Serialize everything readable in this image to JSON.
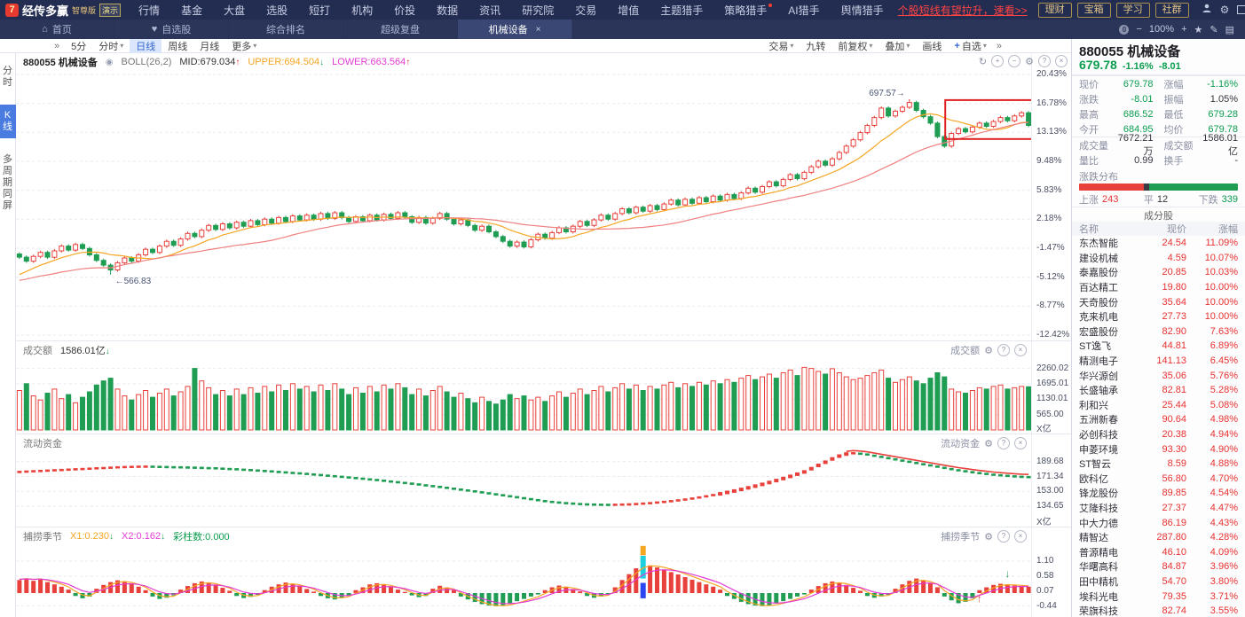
{
  "titlebar": {
    "logo_glyph": "7",
    "brand": "经传多赢",
    "edition": "智尊版",
    "demo_tag": "演示",
    "menus": [
      "行情",
      "基金",
      "大盘",
      "选股",
      "短打",
      "机构",
      "价投",
      "数据",
      "资讯",
      "研究院",
      "交易",
      "增值",
      "主题猎手",
      "策略猎手",
      "AI猎手",
      "舆情猎手"
    ],
    "menu_red_dot": "策略猎手",
    "promo": "个股短线有望拉升，速看>>",
    "gold_buttons": [
      "理财",
      "宝箱",
      "学习",
      "社群"
    ],
    "window_icons": [
      "user",
      "settings",
      "skin",
      "divider",
      "chevron-down",
      "minimize",
      "restore",
      "close"
    ]
  },
  "tabbar": {
    "tabs": [
      {
        "label": "首页",
        "icon": "home-icon"
      },
      {
        "label": "自选股",
        "icon": "heart-icon"
      },
      {
        "label": "综合排名"
      },
      {
        "label": "超级复盘"
      },
      {
        "label": "机械设备",
        "active": true,
        "closable": true
      }
    ],
    "zoom_level": "100%",
    "zoom_icons": [
      "coin",
      "zoom-out",
      "zoom-in",
      "star",
      "pencil",
      "layout"
    ]
  },
  "toolbar": {
    "collapse_glyph": "»",
    "periods": [
      {
        "label": "5分"
      },
      {
        "label": "分时",
        "caret": true
      },
      {
        "label": "日线",
        "active": true
      },
      {
        "label": "周线"
      },
      {
        "label": "月线"
      },
      {
        "label": "更多",
        "caret": true
      }
    ],
    "tools": [
      {
        "label": "交易",
        "caret": true
      },
      {
        "label": "九转"
      },
      {
        "label": "前复权",
        "caret": true
      },
      {
        "label": "叠加",
        "caret": true
      },
      {
        "label": "画线"
      },
      {
        "label": "+自选",
        "caret": true,
        "accent": true
      }
    ],
    "more_glyph": "»"
  },
  "sidebar": {
    "items": [
      {
        "label": "分时"
      },
      {
        "label": "K线",
        "active": true
      },
      {
        "label": "多周期同屏"
      }
    ]
  },
  "kline_header": {
    "symbol": "880055 机械设备",
    "indicator": "BOLL(26,2)",
    "mid": "MID:679.034",
    "upper": "UPPER:694.504",
    "lower": "LOWER:663.564"
  },
  "panel_headers": {
    "volume_name": "成交额",
    "volume_value": "1586.01亿",
    "fund_name": "流动资金",
    "season_name": "捕捞季节",
    "season_x1": "X1:0.230",
    "season_x2": "X2:0.162",
    "season_bars": "彩柱数:0.000"
  },
  "quote": {
    "title": "880055 机械设备",
    "price": "679.78",
    "change_pct": "-1.16%",
    "change": "-8.01",
    "rows": [
      {
        "l1": "现价",
        "v1": "679.78",
        "c1": "down",
        "l2": "涨幅",
        "v2": "-1.16%",
        "c2": "down"
      },
      {
        "l1": "涨跌",
        "v1": "-8.01",
        "c1": "down",
        "l2": "振幅",
        "v2": "1.05%",
        "c2": "flat"
      },
      {
        "l1": "最高",
        "v1": "686.52",
        "c1": "down",
        "l2": "最低",
        "v2": "679.28",
        "c2": "down"
      },
      {
        "l1": "今开",
        "v1": "684.95",
        "c1": "down",
        "l2": "均价",
        "v2": "679.78",
        "c2": "down"
      },
      {
        "l1": "成交量",
        "v1": "7672.21万",
        "c1": "flat",
        "l2": "成交额",
        "v2": "1586.01亿",
        "c2": "flat"
      },
      {
        "l1": "量比",
        "v1": "0.99",
        "c1": "flat",
        "l2": "换手",
        "v2": "-",
        "c2": "flat"
      }
    ],
    "distribution": {
      "label": "涨跌分布",
      "up_label": "上涨",
      "up": "243",
      "flat_label": "平",
      "flat": "12",
      "down_label": "下跌",
      "down": "339",
      "up_ratio": 0.41
    }
  },
  "stocks": {
    "section": "成分股",
    "headers": [
      "名称",
      "现价",
      "涨幅"
    ],
    "rows": [
      [
        "东杰智能",
        "24.54",
        "11.09%"
      ],
      [
        "建设机械",
        "4.59",
        "10.07%"
      ],
      [
        "泰嘉股份",
        "20.85",
        "10.03%"
      ],
      [
        "百达精工",
        "19.80",
        "10.00%"
      ],
      [
        "天奇股份",
        "35.64",
        "10.00%"
      ],
      [
        "克来机电",
        "27.73",
        "10.00%"
      ],
      [
        "宏盛股份",
        "82.90",
        "7.63%"
      ],
      [
        "ST逸飞",
        "44.81",
        "6.89%"
      ],
      [
        "精测电子",
        "141.13",
        "6.45%"
      ],
      [
        "华兴源创",
        "35.06",
        "5.76%"
      ],
      [
        "长盛轴承",
        "82.81",
        "5.28%"
      ],
      [
        "利和兴",
        "25.44",
        "5.08%"
      ],
      [
        "五洲新春",
        "90.64",
        "4.98%"
      ],
      [
        "必创科技",
        "20.38",
        "4.94%"
      ],
      [
        "申菱环境",
        "93.30",
        "4.90%"
      ],
      [
        "ST智云",
        "8.59",
        "4.88%"
      ],
      [
        "欧科亿",
        "56.80",
        "4.70%"
      ],
      [
        "锋龙股份",
        "89.85",
        "4.54%"
      ],
      [
        "艾隆科技",
        "27.37",
        "4.47%"
      ],
      [
        "中大力德",
        "86.19",
        "4.43%"
      ],
      [
        "精智达",
        "287.80",
        "4.28%"
      ],
      [
        "普源精电",
        "46.10",
        "4.09%"
      ],
      [
        "华曙高科",
        "84.87",
        "3.96%"
      ],
      [
        "田中精机",
        "54.70",
        "3.80%"
      ],
      [
        "埃科光电",
        "79.35",
        "3.71%"
      ],
      [
        "荣旗科技",
        "82.74",
        "3.55%"
      ]
    ]
  },
  "colors": {
    "up": "#e8403a",
    "down": "#1f9d53",
    "orange": "#f5a623",
    "pink": "#f08080",
    "magenta": "#e23bd4",
    "cyan": "#1ecfe0",
    "blue": "#2b46f0",
    "box": "#e02020",
    "green_text": "#0a9d4e",
    "red_text": "#e8312f",
    "gold": "#d8b977"
  },
  "chart_data": {
    "type": "candlestick",
    "symbol": "880055 机械设备",
    "kline": {
      "ylim": [
        -12.42,
        20.43
      ],
      "ticks": [
        [
          20.43,
          "20.43%"
        ],
        [
          16.78,
          "16.78%"
        ],
        [
          13.13,
          "13.13%"
        ],
        [
          9.48,
          "9.48%"
        ],
        [
          5.83,
          "5.83%"
        ],
        [
          2.18,
          "2.18%"
        ],
        [
          -1.47,
          "-1.47%"
        ],
        [
          -5.12,
          "-5.12%"
        ],
        [
          -8.77,
          "-8.77%"
        ],
        [
          -12.42,
          "-12.42%"
        ]
      ],
      "closes": [
        -2.6,
        -3.1,
        -2.5,
        -2.0,
        -2.6,
        -1.8,
        -1.2,
        -1.7,
        -1.0,
        -1.5,
        -2.3,
        -3.0,
        -3.6,
        -4.2,
        -3.3,
        -2.7,
        -3.1,
        -2.3,
        -1.6,
        -2.0,
        -1.2,
        -0.6,
        -1.1,
        -0.3,
        0.4,
        0.0,
        0.8,
        1.4,
        0.9,
        1.6,
        1.1,
        1.8,
        1.3,
        2.0,
        1.5,
        2.2,
        1.7,
        2.4,
        1.9,
        2.6,
        2.1,
        2.7,
        2.2,
        2.9,
        2.3,
        3.0,
        2.4,
        1.9,
        2.5,
        2.0,
        2.7,
        2.1,
        2.8,
        2.3,
        3.0,
        2.5,
        1.8,
        2.4,
        1.7,
        2.3,
        2.9,
        2.2,
        1.6,
        2.1,
        1.4,
        0.8,
        1.3,
        0.6,
        0.0,
        -0.6,
        -1.2,
        -0.7,
        -1.3,
        -0.4,
        0.3,
        -0.2,
        0.5,
        1.1,
        0.6,
        1.3,
        1.9,
        1.4,
        2.1,
        2.7,
        2.2,
        2.9,
        3.5,
        3.0,
        3.7,
        3.2,
        3.9,
        3.4,
        4.1,
        4.6,
        4.0,
        4.7,
        4.2,
        4.9,
        4.4,
        5.1,
        4.6,
        5.3,
        4.8,
        5.5,
        6.1,
        5.6,
        6.3,
        6.9,
        6.4,
        7.2,
        7.8,
        7.3,
        8.1,
        8.8,
        9.5,
        9.0,
        9.8,
        10.6,
        11.4,
        12.2,
        13.1,
        14.0,
        15.0,
        16.2,
        15.2,
        15.8,
        16.3,
        16.9,
        15.9,
        15.1,
        14.3,
        12.6,
        11.4,
        13.0,
        13.6,
        13.2,
        13.8,
        14.3,
        13.9,
        14.5,
        15.0,
        14.6,
        15.2,
        15.6,
        14.0
      ],
      "ma_seed": [
        -8.5,
        -8.0,
        -7.5,
        -7.0,
        -6.5,
        -6.0,
        -5.5,
        -5.0,
        -4.5,
        -4.0,
        -3.6,
        -3.2
      ],
      "high_label": {
        "index": 127,
        "value": 17.3,
        "text": "697.57→"
      },
      "low_label": {
        "index": 13,
        "value": -4.8,
        "text": "←566.83"
      },
      "highlight_box": {
        "i0": 133,
        "i1": 144,
        "v0": 12.3,
        "v1": 17.2
      }
    },
    "volume": {
      "unit": "X亿",
      "ymax": 2800,
      "ticks": [
        [
          2260.02,
          "2260.02"
        ],
        [
          1695.01,
          "1695.01"
        ],
        [
          1130.01,
          "1130.01"
        ],
        [
          565.0,
          "565.00"
        ]
      ],
      "values": [
        1450,
        1700,
        1250,
        1100,
        1350,
        1500,
        1150,
        1300,
        1000,
        1200,
        1400,
        1650,
        1800,
        1900,
        1500,
        1250,
        1100,
        1300,
        1450,
        1200,
        1350,
        1500,
        1250,
        1400,
        1600,
        2260,
        1800,
        1550,
        1300,
        1450,
        1250,
        1500,
        1300,
        1550,
        1350,
        1600,
        1400,
        1650,
        1450,
        1700,
        1500,
        1600,
        1400,
        1650,
        1450,
        1700,
        1500,
        1300,
        1550,
        1350,
        1600,
        1400,
        1650,
        1500,
        1700,
        1550,
        1300,
        1500,
        1250,
        1450,
        1600,
        1400,
        1200,
        1350,
        1150,
        1000,
        1200,
        1050,
        950,
        1100,
        1300,
        1150,
        1250,
        1100,
        1200,
        1050,
        1250,
        1400,
        1200,
        1350,
        1500,
        1300,
        1450,
        1600,
        1400,
        1550,
        1700,
        1500,
        1650,
        1450,
        1600,
        1500,
        1650,
        1750,
        1550,
        1700,
        1600,
        1750,
        1650,
        1800,
        1700,
        1850,
        1750,
        1900,
        2000,
        1850,
        1950,
        2050,
        1900,
        2100,
        2200,
        2000,
        2300,
        2260,
        2150,
        2050,
        2250,
        2100,
        1950,
        1850,
        1900,
        2000,
        2100,
        2200,
        1900,
        1750,
        1850,
        1950,
        1800,
        1700,
        1900,
        2100,
        1950,
        1500,
        1400,
        1350,
        1450,
        1550,
        1500,
        1600,
        1650,
        1500,
        1550,
        1600,
        1586
      ]
    },
    "fund": {
      "unit": "X亿",
      "ymax": 208,
      "ymin": 114,
      "ticks": [
        [
          189.68,
          "189.68"
        ],
        [
          171.34,
          "171.34"
        ],
        [
          153.0,
          "153.00"
        ],
        [
          134.65,
          "134.65"
        ]
      ],
      "trend_line_from": 118,
      "values": [
        177.0,
        177.4,
        177.8,
        178.2,
        178.6,
        179.0,
        179.4,
        179.8,
        180.2,
        180.6,
        181.0,
        181.4,
        181.8,
        182.2,
        182.6,
        183.0,
        183.2,
        183.4,
        183.5,
        183.4,
        183.2,
        183.0,
        182.8,
        182.6,
        182.4,
        182.2,
        182.0,
        181.7,
        181.4,
        181.0,
        180.6,
        180.2,
        179.7,
        179.2,
        178.7,
        178.2,
        177.6,
        177.0,
        176.4,
        175.8,
        175.2,
        174.5,
        173.8,
        173.1,
        172.4,
        171.7,
        171.0,
        170.2,
        169.4,
        168.6,
        167.8,
        167.0,
        166.1,
        165.2,
        164.3,
        163.4,
        162.5,
        161.5,
        160.5,
        159.5,
        158.5,
        157.4,
        156.3,
        155.2,
        154.1,
        153.0,
        151.8,
        150.6,
        149.4,
        148.2,
        147.0,
        145.8,
        144.6,
        143.4,
        142.2,
        141.0,
        140.0,
        139.2,
        138.5,
        137.9,
        137.4,
        137.0,
        136.7,
        136.5,
        136.4,
        136.5,
        136.7,
        137.0,
        137.4,
        137.9,
        138.5,
        139.2,
        140.0,
        140.9,
        141.9,
        143.0,
        144.2,
        145.5,
        146.9,
        148.4,
        150.0,
        151.7,
        153.5,
        155.4,
        157.4,
        159.5,
        161.7,
        164.0,
        166.4,
        168.9,
        171.5,
        174.2,
        177.0,
        181.0,
        185.0,
        189.0,
        193.0,
        196.5,
        199.0,
        200.0,
        199.5,
        198.5,
        197.0,
        195.5,
        194.0,
        192.5,
        191.0,
        189.5,
        188.0,
        186.5,
        185.0,
        183.5,
        182.0,
        180.5,
        179.0,
        177.8,
        176.6,
        175.5,
        174.5,
        173.6,
        172.8,
        172.1,
        171.5,
        171.0,
        170.6
      ]
    },
    "season": {
      "ymax": 1.95,
      "ymin": -0.73,
      "ticks": [
        [
          1.1,
          "1.10"
        ],
        [
          0.58,
          "0.58"
        ],
        [
          0.07,
          "0.07"
        ],
        [
          -0.44,
          "-0.44"
        ]
      ],
      "values": [
        0.45,
        0.5,
        0.42,
        0.48,
        0.38,
        0.3,
        0.22,
        0.12,
        -0.1,
        -0.18,
        -0.12,
        0.15,
        0.28,
        0.38,
        0.44,
        0.4,
        0.32,
        0.22,
        0.1,
        -0.12,
        -0.2,
        -0.16,
        -0.08,
        0.12,
        0.24,
        0.34,
        0.4,
        0.36,
        0.28,
        0.18,
        0.08,
        -0.1,
        -0.17,
        -0.13,
        -0.06,
        0.1,
        0.22,
        0.3,
        0.36,
        0.32,
        0.24,
        0.14,
        0.05,
        -0.1,
        -0.18,
        -0.22,
        -0.16,
        -0.08,
        0.1,
        0.2,
        0.3,
        0.34,
        0.3,
        0.22,
        0.12,
        0.04,
        -0.08,
        -0.14,
        -0.1,
        0.15,
        0.25,
        0.2,
        0.1,
        -0.12,
        -0.22,
        -0.3,
        -0.38,
        -0.43,
        -0.45,
        -0.42,
        -0.36,
        -0.28,
        -0.2,
        -0.12,
        -0.05,
        0.1,
        0.2,
        0.26,
        0.22,
        0.14,
        0.06,
        -0.1,
        -0.16,
        -0.12,
        -0.05,
        0.2,
        0.45,
        0.65,
        0.85,
        1.0,
        0.95,
        0.88,
        0.8,
        0.72,
        0.64,
        0.55,
        0.46,
        0.38,
        0.3,
        0.22,
        0.12,
        -0.1,
        -0.2,
        -0.3,
        -0.38,
        -0.43,
        -0.45,
        -0.42,
        -0.36,
        -0.28,
        -0.2,
        -0.12,
        -0.05,
        0.12,
        0.24,
        0.34,
        0.4,
        0.36,
        0.28,
        0.18,
        0.08,
        -0.1,
        -0.16,
        -0.12,
        -0.06,
        0.15,
        0.3,
        0.42,
        0.5,
        0.44,
        0.34,
        0.2,
        -0.12,
        -0.25,
        -0.35,
        -0.3,
        -0.18,
        0.1,
        0.2,
        0.28,
        0.32,
        0.3,
        0.26,
        0.24,
        0.22
      ],
      "special": {
        "index": 89,
        "segments": [
          [
            1.62,
            1.3,
            "orange"
          ],
          [
            1.28,
            0.5,
            "cyan"
          ],
          [
            0.35,
            -0.18,
            "blue"
          ]
        ]
      },
      "up_arrow_index": 137,
      "down_arrow_index": 141
    }
  }
}
